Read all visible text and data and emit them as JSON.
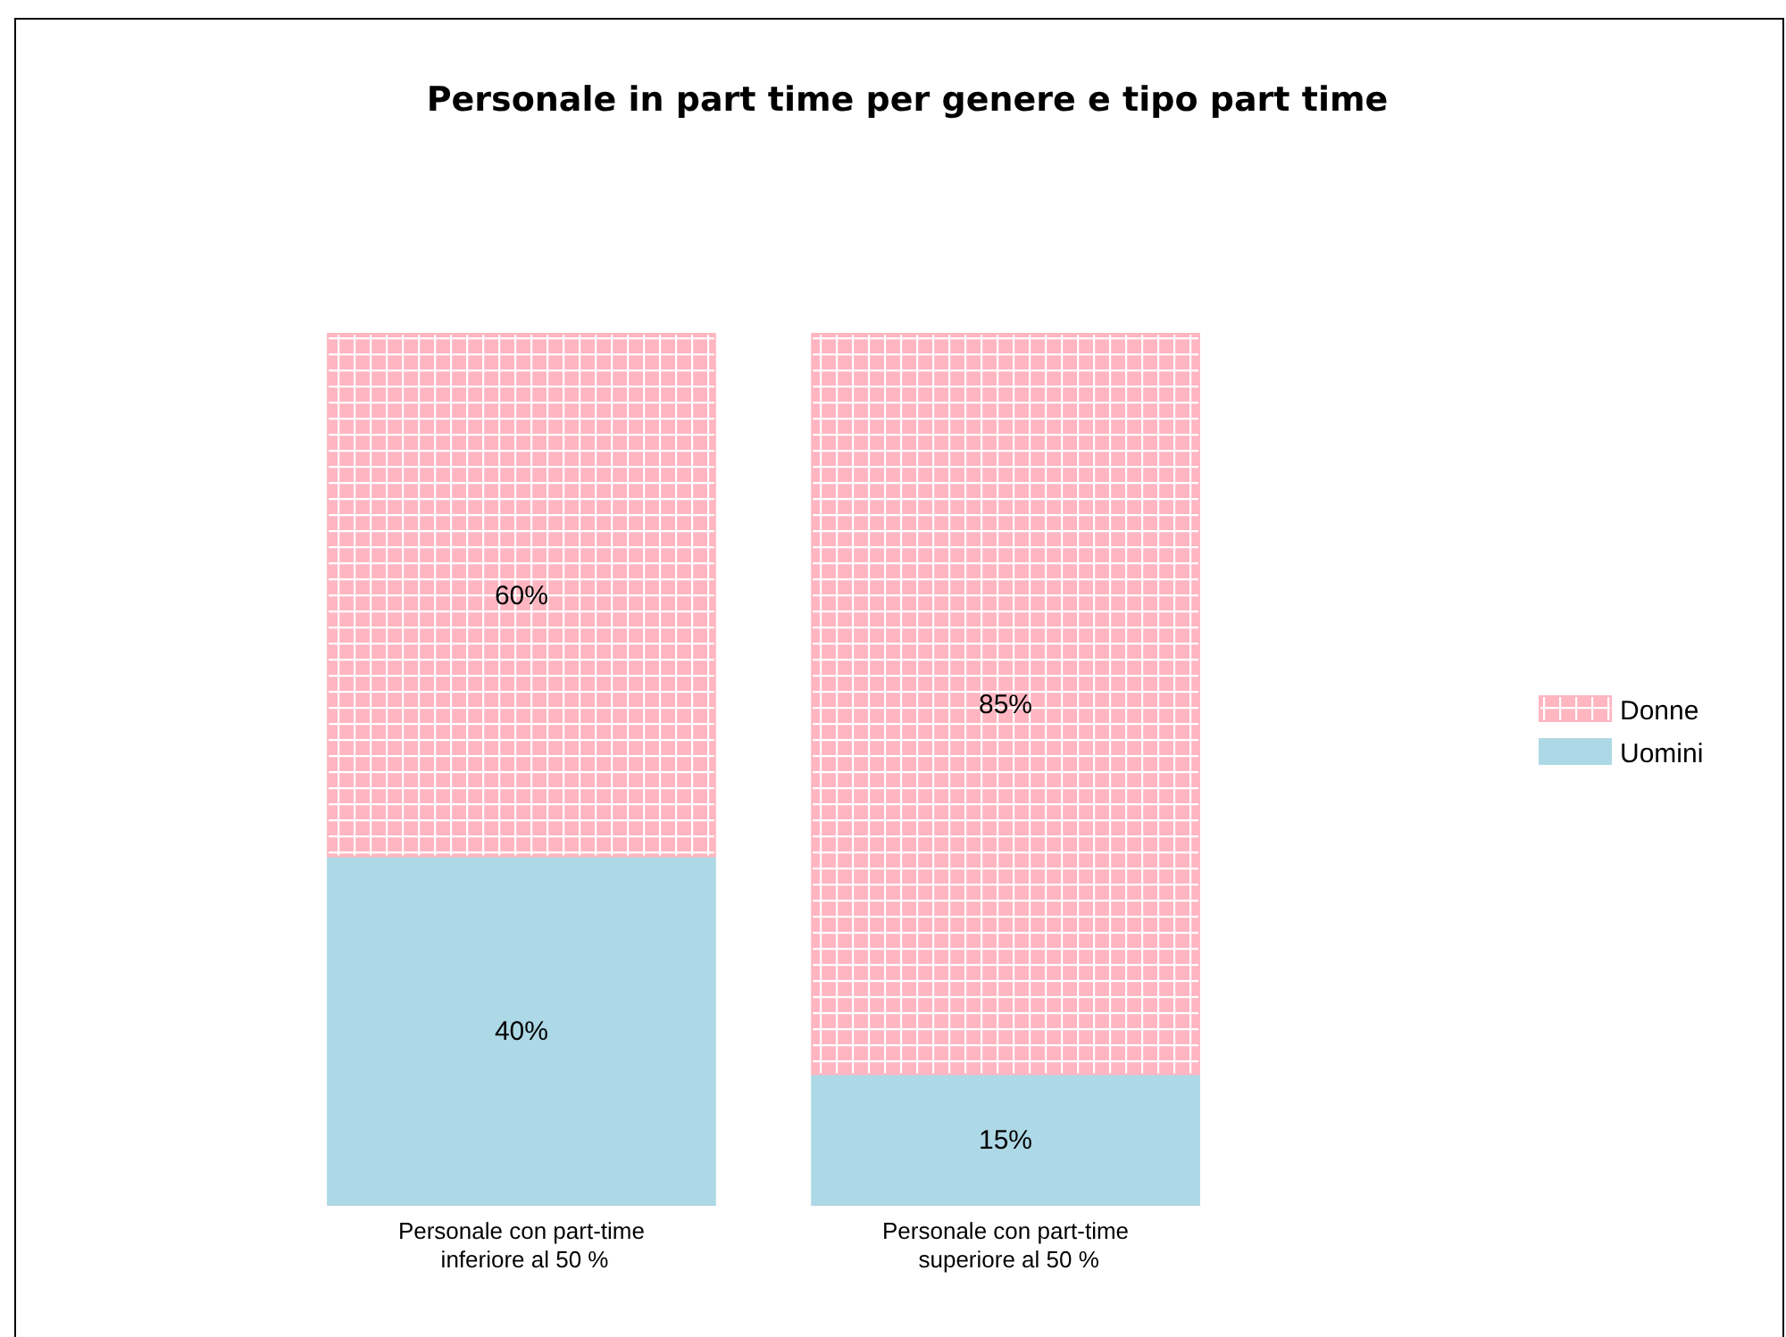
{
  "chart_data": {
    "type": "bar",
    "title": "Personale in part time per genere e tipo part time",
    "categories": [
      "Personale con part-time inferiore al 50 %",
      "Personale con part-time superiore al 50 %"
    ],
    "stacked": true,
    "legend": "right",
    "series": [
      {
        "name": "Uomini",
        "color": "#add8e6",
        "values": [
          40,
          15
        ],
        "value_labels": [
          "40%",
          "15%"
        ]
      },
      {
        "name": "Donne",
        "color": "#ffb6c1",
        "values": [
          60,
          85
        ],
        "value_labels": [
          "60%",
          "85%"
        ]
      }
    ]
  }
}
